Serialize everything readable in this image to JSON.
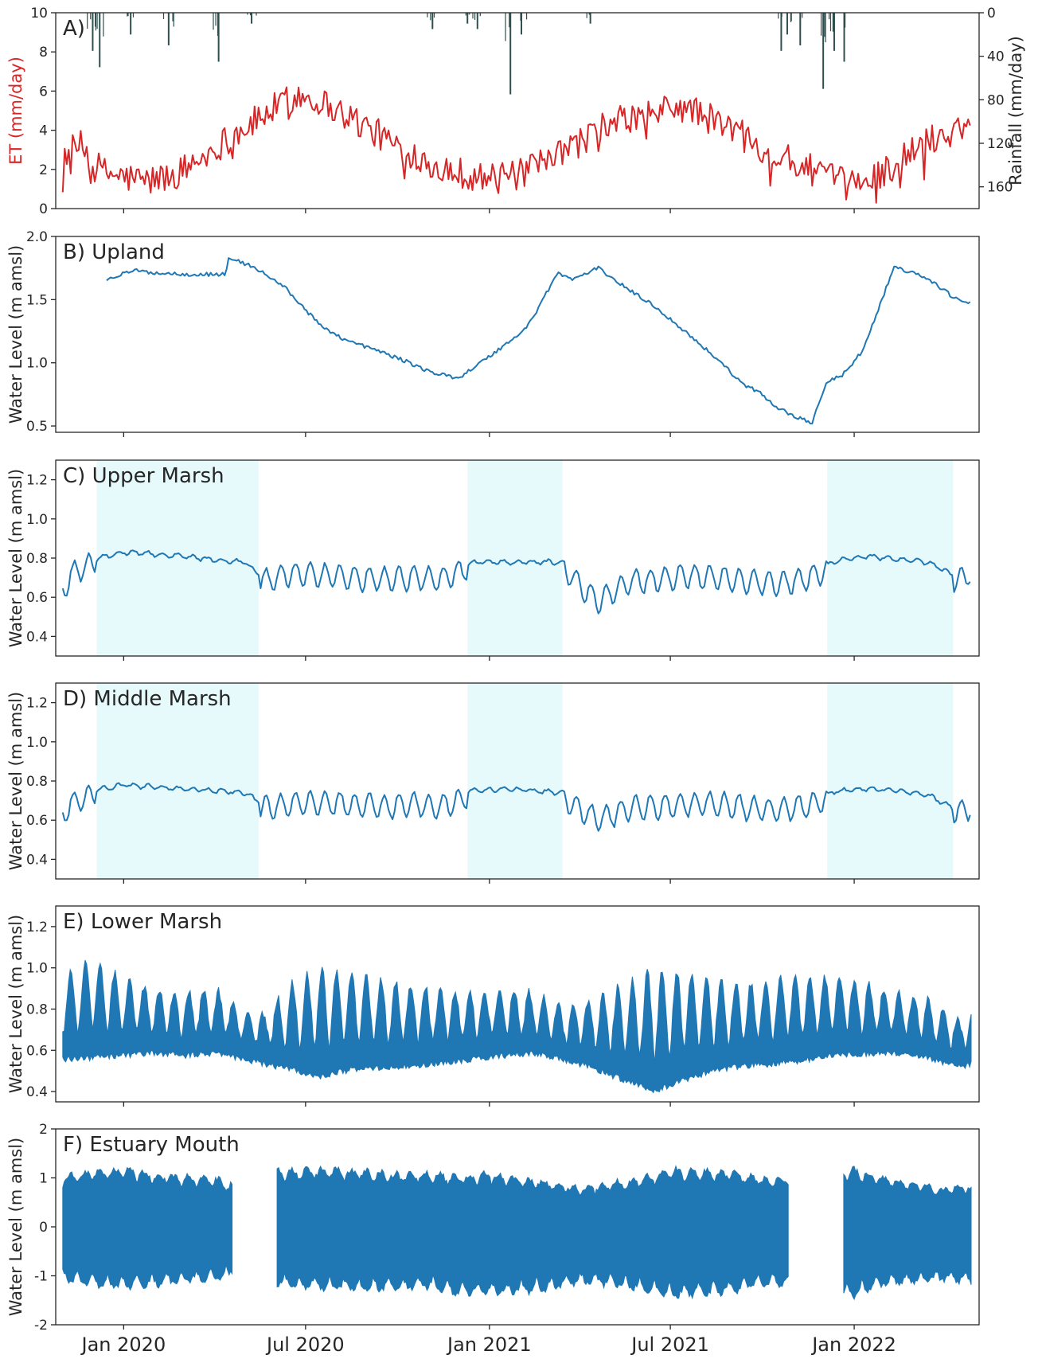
{
  "x_ticks": [
    "Jan 2020",
    "Jul 2020",
    "Jan 2021",
    "Jul 2021",
    "Jan 2022"
  ],
  "chart_data": [
    {
      "type": "line",
      "panel": "A)",
      "ylabel": "ET (mm/day)",
      "ylabel_color": "#d62728",
      "ylim": [
        0,
        10
      ],
      "yticks": [
        "0",
        "2",
        "4",
        "6",
        "8",
        "10"
      ],
      "y2label": "Rainfall (mm/day)",
      "y2lim": [
        0,
        180
      ],
      "y2_inverted": true,
      "y2ticks": [
        "0",
        "40",
        "80",
        "120",
        "160"
      ],
      "series": [
        {
          "type": "line",
          "color": "#d62728",
          "x": [
            "2019-11-01",
            "2019-11-20",
            "2019-12-10",
            "2020-01-01",
            "2020-01-25",
            "2020-02-20",
            "2020-03-20",
            "2020-04-15",
            "2020-05-10",
            "2020-06-05",
            "2020-06-25",
            "2020-07-15",
            "2020-08-10",
            "2020-09-05",
            "2020-10-01",
            "2020-10-25",
            "2020-11-20",
            "2020-12-15",
            "2021-01-10",
            "2021-02-05",
            "2021-03-05",
            "2021-04-01",
            "2021-04-25",
            "2021-05-20",
            "2021-06-15",
            "2021-07-05",
            "2021-07-25",
            "2021-08-20",
            "2021-09-15",
            "2021-10-10",
            "2021-11-05",
            "2021-12-01",
            "2021-12-25",
            "2022-01-20",
            "2022-02-15",
            "2022-03-10",
            "2022-04-05",
            "2022-04-28"
          ],
          "values": [
            2.8,
            3.2,
            1.9,
            1.6,
            1.4,
            1.7,
            2.6,
            3.6,
            4.4,
            5.3,
            5.8,
            5.5,
            4.8,
            4.0,
            3.2,
            2.6,
            2.0,
            1.7,
            1.5,
            1.8,
            2.5,
            3.4,
            4.2,
            4.6,
            4.8,
            5.2,
            5.0,
            4.3,
            3.8,
            2.8,
            2.3,
            1.7,
            1.2,
            1.6,
            2.4,
            3.3,
            3.9,
            4.4
          ]
        },
        {
          "type": "bar",
          "axis": "right",
          "color": "#2f4f4f",
          "x": [
            "2019-12-01",
            "2019-12-08",
            "2020-01-08",
            "2020-02-15",
            "2020-04-05",
            "2020-05-08",
            "2020-11-05",
            "2020-12-10",
            "2020-12-20",
            "2021-01-22",
            "2021-02-02",
            "2021-04-12",
            "2021-10-20",
            "2021-10-26",
            "2021-11-08",
            "2021-12-01",
            "2021-12-12",
            "2021-12-22"
          ],
          "values": [
            35,
            50,
            20,
            30,
            45,
            10,
            15,
            10,
            15,
            75,
            20,
            10,
            35,
            20,
            30,
            70,
            35,
            45
          ]
        }
      ]
    },
    {
      "type": "line",
      "panel": "B) Upland",
      "ylabel": "Water Level (m amsl)",
      "ylim": [
        0.45,
        2.0
      ],
      "yticks": [
        "0.5",
        "1.0",
        "1.5",
        "2.0"
      ],
      "series": [
        {
          "color": "#1f77b4",
          "x": [
            "2019-12-15",
            "2020-01-10",
            "2020-02-05",
            "2020-03-10",
            "2020-04-12",
            "2020-04-15",
            "2020-05-10",
            "2020-06-10",
            "2020-07-15",
            "2020-08-10",
            "2020-09-10",
            "2020-10-10",
            "2020-11-05",
            "2020-12-01",
            "2021-01-01",
            "2021-02-05",
            "2021-02-15",
            "2021-03-10",
            "2021-03-25",
            "2021-04-20",
            "2021-05-20",
            "2021-06-15",
            "2021-07-20",
            "2021-08-20",
            "2021-09-10",
            "2021-10-01",
            "2021-10-15",
            "2021-11-10",
            "2021-11-20",
            "2021-12-05",
            "2021-12-20",
            "2022-01-10",
            "2022-02-10",
            "2022-03-15",
            "2022-04-10",
            "2022-04-28"
          ],
          "values": [
            1.66,
            1.73,
            1.71,
            1.7,
            1.7,
            1.83,
            1.76,
            1.6,
            1.3,
            1.18,
            1.1,
            1.01,
            0.92,
            0.88,
            1.05,
            1.26,
            1.38,
            1.71,
            1.66,
            1.75,
            1.58,
            1.45,
            1.22,
            1.01,
            0.84,
            0.75,
            0.65,
            0.55,
            0.53,
            0.85,
            0.9,
            1.1,
            1.76,
            1.67,
            1.52,
            1.47
          ]
        }
      ]
    },
    {
      "type": "line",
      "panel": "C) Upper Marsh",
      "ylabel": "Water Level (m amsl)",
      "ylim": [
        0.3,
        1.3
      ],
      "yticks": [
        "0.4",
        "0.6",
        "0.8",
        "1.0",
        "1.2"
      ],
      "shaded_periods": [
        [
          "2019-12-05",
          "2020-05-15"
        ],
        [
          "2020-12-10",
          "2021-03-15"
        ],
        [
          "2021-12-05",
          "2022-04-10"
        ]
      ],
      "shade_color": "#e6fafc",
      "series": [
        {
          "color": "#1f77b4",
          "x": [
            "2019-11-01",
            "2019-11-15",
            "2019-12-01",
            "2020-01-01",
            "2020-02-01",
            "2020-03-01",
            "2020-04-01",
            "2020-05-01",
            "2020-05-20",
            "2020-06-15",
            "2020-07-15",
            "2020-08-15",
            "2020-09-15",
            "2020-10-15",
            "2020-11-15",
            "2020-12-15",
            "2021-01-15",
            "2021-02-15",
            "2021-03-15",
            "2021-04-05",
            "2021-04-20",
            "2021-05-20",
            "2021-06-20",
            "2021-07-20",
            "2021-08-20",
            "2021-09-20",
            "2021-10-20",
            "2021-11-20",
            "2021-12-15",
            "2022-01-15",
            "2022-02-15",
            "2022-03-15",
            "2022-04-15",
            "2022-04-28"
          ],
          "values": [
            0.66,
            0.76,
            0.79,
            0.83,
            0.82,
            0.81,
            0.79,
            0.78,
            0.7,
            0.74,
            0.73,
            0.72,
            0.71,
            0.72,
            0.71,
            0.78,
            0.78,
            0.78,
            0.78,
            0.66,
            0.6,
            0.7,
            0.71,
            0.73,
            0.72,
            0.7,
            0.69,
            0.72,
            0.79,
            0.81,
            0.79,
            0.78,
            0.7,
            0.75
          ]
        }
      ]
    },
    {
      "type": "line",
      "panel": "D) Middle Marsh",
      "ylabel": "Water Level (m amsl)",
      "ylim": [
        0.3,
        1.3
      ],
      "yticks": [
        "0.4",
        "0.6",
        "0.8",
        "1.0",
        "1.2"
      ],
      "shaded_periods": [
        [
          "2019-12-05",
          "2020-05-15"
        ],
        [
          "2020-12-10",
          "2021-03-15"
        ],
        [
          "2021-12-05",
          "2022-04-10"
        ]
      ],
      "shade_color": "#e6fafc",
      "series": [
        {
          "color": "#1f77b4",
          "x": [
            "2019-11-01",
            "2019-11-15",
            "2019-12-01",
            "2020-01-01",
            "2020-02-01",
            "2020-03-01",
            "2020-04-01",
            "2020-05-01",
            "2020-05-20",
            "2020-06-15",
            "2020-07-15",
            "2020-08-15",
            "2020-09-15",
            "2020-10-15",
            "2020-11-15",
            "2020-12-15",
            "2021-01-15",
            "2021-02-15",
            "2021-03-15",
            "2021-04-05",
            "2021-04-20",
            "2021-05-20",
            "2021-06-20",
            "2021-07-20",
            "2021-08-20",
            "2021-09-20",
            "2021-10-20",
            "2021-11-20",
            "2021-12-15",
            "2022-01-15",
            "2022-02-15",
            "2022-03-15",
            "2022-04-15",
            "2022-04-28"
          ],
          "values": [
            0.66,
            0.72,
            0.75,
            0.78,
            0.77,
            0.76,
            0.75,
            0.74,
            0.68,
            0.7,
            0.71,
            0.7,
            0.69,
            0.7,
            0.69,
            0.75,
            0.76,
            0.75,
            0.74,
            0.66,
            0.62,
            0.68,
            0.69,
            0.7,
            0.7,
            0.68,
            0.67,
            0.7,
            0.75,
            0.76,
            0.75,
            0.73,
            0.65,
            0.69
          ]
        }
      ]
    },
    {
      "type": "area",
      "panel": "E) Lower Marsh",
      "ylabel": "Water Level (m amsl)",
      "ylim": [
        0.35,
        1.3
      ],
      "yticks": [
        "0.4",
        "0.6",
        "0.8",
        "1.0",
        "1.2"
      ],
      "series": [
        {
          "color": "#1f77b4",
          "x": [
            "2019-11-01",
            "2019-12-01",
            "2020-01-01",
            "2020-02-01",
            "2020-03-01",
            "2020-04-01",
            "2020-05-01",
            "2020-05-20",
            "2020-06-15",
            "2020-07-15",
            "2020-08-15",
            "2020-09-15",
            "2020-10-15",
            "2020-11-15",
            "2020-12-15",
            "2021-01-15",
            "2021-02-15",
            "2021-03-15",
            "2021-04-15",
            "2021-05-15",
            "2021-06-15",
            "2021-07-15",
            "2021-08-15",
            "2021-09-15",
            "2021-10-15",
            "2021-11-15",
            "2021-12-15",
            "2022-01-15",
            "2022-02-15",
            "2022-03-15",
            "2022-04-15",
            "2022-04-28"
          ],
          "baseline": [
            0.6,
            0.61,
            0.62,
            0.63,
            0.62,
            0.63,
            0.6,
            0.58,
            0.55,
            0.52,
            0.55,
            0.56,
            0.57,
            0.58,
            0.6,
            0.62,
            0.63,
            0.6,
            0.56,
            0.5,
            0.45,
            0.5,
            0.55,
            0.57,
            0.58,
            0.6,
            0.62,
            0.63,
            0.63,
            0.61,
            0.56,
            0.58
          ],
          "peak": [
            0.95,
            1.05,
            0.95,
            0.9,
            0.88,
            0.9,
            0.8,
            0.78,
            0.92,
            1.0,
            0.98,
            0.95,
            0.92,
            0.9,
            0.88,
            0.9,
            0.88,
            0.82,
            0.85,
            0.92,
            1.0,
            0.98,
            0.95,
            0.92,
            0.95,
            0.95,
            0.97,
            0.92,
            0.88,
            0.85,
            0.75,
            0.78
          ]
        }
      ]
    },
    {
      "type": "area",
      "panel": "F) Estuary Mouth",
      "ylabel": "Water Level (m amsl)",
      "ylim": [
        -2,
        2
      ],
      "yticks": [
        "-2",
        "-1",
        "0",
        "1",
        "2"
      ],
      "series": [
        {
          "color": "#1f77b4",
          "x": [
            "2019-11-01",
            "2019-12-01",
            "2020-01-01",
            "2020-02-01",
            "2020-03-01",
            "2020-04-01",
            "2020-05-01",
            "2020-06-01",
            "2020-07-01",
            "2020-08-01",
            "2020-09-01",
            "2020-10-01",
            "2020-11-01",
            "2020-12-01",
            "2021-01-01",
            "2021-02-01",
            "2021-03-01",
            "2021-04-01",
            "2021-05-01",
            "2021-06-01",
            "2021-07-01",
            "2021-08-01",
            "2021-09-01",
            "2021-10-01",
            "2021-11-01",
            "2021-12-01",
            "2022-01-01",
            "2022-02-01",
            "2022-03-01",
            "2022-04-01",
            "2022-04-28"
          ],
          "high": [
            1.05,
            1.15,
            1.2,
            1.1,
            1.05,
            1.0,
            0.8,
            1.15,
            1.2,
            1.2,
            1.15,
            1.1,
            1.1,
            1.05,
            1.1,
            1.0,
            0.95,
            0.8,
            0.9,
            1.0,
            1.2,
            1.15,
            1.15,
            1.0,
            1.0,
            1.15,
            1.2,
            1.0,
            0.9,
            0.8,
            0.85
          ],
          "low": [
            -1.1,
            -1.2,
            -1.25,
            -1.2,
            -1.15,
            -1.1,
            -0.9,
            -1.2,
            -1.25,
            -1.3,
            -1.3,
            -1.3,
            -1.25,
            -1.4,
            -1.4,
            -1.35,
            -1.3,
            -1.15,
            -1.2,
            -1.3,
            -1.45,
            -1.4,
            -1.35,
            -1.2,
            -1.2,
            -1.35,
            -1.45,
            -1.2,
            -1.15,
            -1.1,
            -1.15
          ],
          "gaps": [
            [
              "2020-04-20",
              "2020-06-01"
            ],
            [
              "2021-10-28",
              "2021-12-20"
            ]
          ]
        }
      ]
    }
  ]
}
